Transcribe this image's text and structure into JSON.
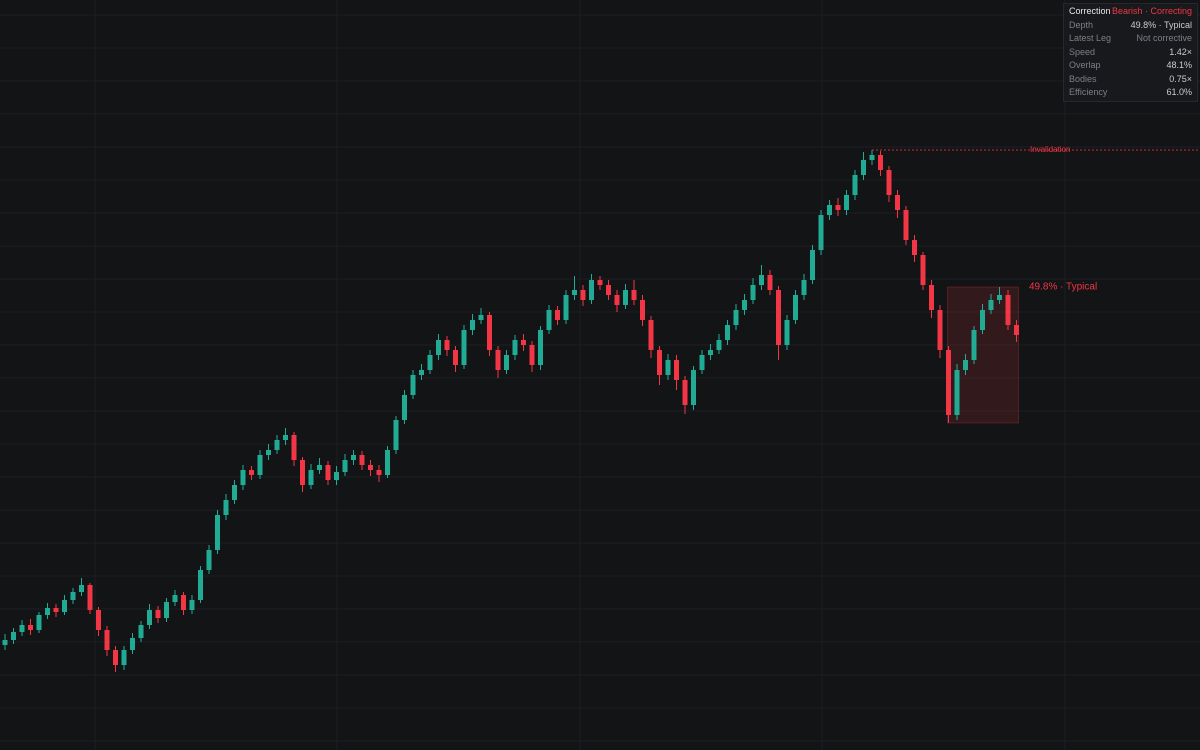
{
  "chart_data": {
    "type": "candlestick",
    "ylim": [
      0,
      750
    ],
    "colors": {
      "up": "#22ab94",
      "down": "#f23645",
      "zone": "#f23645"
    },
    "open": [
      105,
      110,
      118,
      125,
      120,
      135,
      142,
      138,
      150,
      158,
      165,
      140,
      120,
      100,
      85,
      100,
      112,
      125,
      140,
      132,
      148,
      155,
      140,
      150,
      180,
      200,
      235,
      250,
      265,
      280,
      275,
      295,
      300,
      310,
      315,
      290,
      265,
      280,
      285,
      270,
      278,
      290,
      295,
      285,
      280,
      275,
      300,
      330,
      355,
      375,
      380,
      395,
      410,
      400,
      385,
      420,
      430,
      435,
      400,
      380,
      395,
      410,
      405,
      385,
      420,
      440,
      430,
      455,
      460,
      450,
      470,
      465,
      455,
      445,
      460,
      450,
      430,
      400,
      375,
      390,
      370,
      345,
      380,
      395,
      400,
      410,
      425,
      440,
      450,
      465,
      475,
      460,
      405,
      430,
      455,
      470,
      500,
      535,
      545,
      540,
      555,
      575,
      590,
      595,
      580,
      555,
      540,
      510,
      495,
      465,
      440,
      400,
      335,
      380,
      390,
      420,
      440,
      450,
      455,
      425
    ],
    "high": [
      116,
      122,
      130,
      131,
      138,
      147,
      146,
      155,
      162,
      172,
      167,
      143,
      124,
      104,
      104,
      117,
      129,
      146,
      144,
      152,
      160,
      158,
      155,
      184,
      205,
      240,
      256,
      270,
      285,
      284,
      300,
      306,
      315,
      322,
      318,
      293,
      286,
      292,
      289,
      284,
      296,
      300,
      299,
      290,
      285,
      304,
      334,
      360,
      380,
      386,
      400,
      416,
      414,
      404,
      425,
      436,
      442,
      438,
      404,
      400,
      415,
      416,
      409,
      424,
      445,
      444,
      460,
      474,
      465,
      476,
      474,
      470,
      460,
      466,
      470,
      455,
      434,
      404,
      396,
      395,
      374,
      384,
      400,
      406,
      416,
      430,
      446,
      456,
      472,
      485,
      480,
      464,
      435,
      460,
      476,
      505,
      540,
      550,
      552,
      560,
      580,
      598,
      600,
      599,
      584,
      560,
      544,
      515,
      498,
      470,
      445,
      404,
      386,
      396,
      424,
      446,
      456,
      463,
      460,
      430
    ],
    "low": [
      100,
      106,
      114,
      115,
      117,
      131,
      133,
      135,
      146,
      154,
      136,
      114,
      94,
      78,
      80,
      96,
      108,
      121,
      127,
      128,
      144,
      135,
      136,
      147,
      176,
      196,
      230,
      246,
      260,
      270,
      271,
      290,
      296,
      305,
      284,
      258,
      261,
      276,
      265,
      265,
      274,
      285,
      280,
      274,
      268,
      272,
      296,
      326,
      351,
      370,
      376,
      390,
      394,
      378,
      381,
      415,
      426,
      394,
      372,
      376,
      390,
      399,
      378,
      380,
      416,
      425,
      426,
      450,
      444,
      446,
      460,
      450,
      438,
      441,
      445,
      424,
      392,
      365,
      370,
      360,
      336,
      340,
      376,
      390,
      396,
      405,
      420,
      435,
      446,
      460,
      455,
      390,
      400,
      426,
      450,
      466,
      495,
      530,
      534,
      535,
      550,
      570,
      585,
      574,
      548,
      532,
      505,
      488,
      460,
      432,
      392,
      327,
      330,
      375,
      386,
      416,
      436,
      446,
      420,
      408
    ],
    "close": [
      110,
      118,
      125,
      120,
      135,
      142,
      138,
      150,
      158,
      165,
      140,
      120,
      100,
      85,
      100,
      112,
      125,
      140,
      132,
      148,
      155,
      140,
      150,
      180,
      200,
      235,
      250,
      265,
      280,
      275,
      295,
      300,
      310,
      315,
      290,
      265,
      280,
      285,
      270,
      278,
      290,
      295,
      285,
      280,
      275,
      300,
      330,
      355,
      375,
      380,
      395,
      410,
      400,
      385,
      420,
      430,
      435,
      400,
      380,
      395,
      410,
      405,
      385,
      420,
      440,
      430,
      455,
      460,
      450,
      470,
      465,
      455,
      445,
      460,
      450,
      430,
      400,
      375,
      390,
      370,
      345,
      380,
      395,
      400,
      410,
      425,
      440,
      450,
      465,
      475,
      460,
      405,
      430,
      455,
      470,
      500,
      535,
      545,
      540,
      555,
      575,
      590,
      595,
      580,
      555,
      540,
      510,
      495,
      465,
      440,
      400,
      335,
      380,
      390,
      420,
      440,
      450,
      455,
      425,
      415
    ],
    "annotations": {
      "invalidation": "Invalidation"
    }
  },
  "panel": {
    "title": "Correction",
    "status": "Bearish · Correcting",
    "rows": [
      [
        "Depth",
        "49.8% · Typical"
      ],
      [
        "Latest Leg",
        "Not corrective"
      ],
      [
        "Speed",
        "1.42×"
      ],
      [
        "Overlap",
        "48.1%"
      ],
      [
        "Bodies",
        "0.75×"
      ],
      [
        "Efficiency",
        "61.0%"
      ]
    ]
  }
}
